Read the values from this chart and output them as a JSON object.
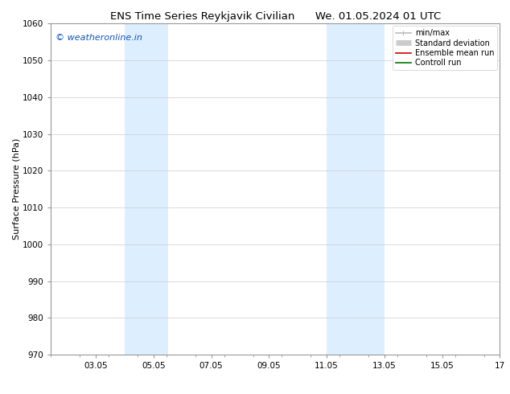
{
  "title_left": "ENS Time Series Reykjavik Civilian",
  "title_right": "We. 01.05.2024 01 UTC",
  "ylabel": "Surface Pressure (hPa)",
  "ylim": [
    970,
    1060
  ],
  "yticks": [
    970,
    980,
    990,
    1000,
    1010,
    1020,
    1030,
    1040,
    1050,
    1060
  ],
  "xlim_start": 1.5,
  "xlim_end": 17.05,
  "xtick_labels": [
    "03.05",
    "05.05",
    "07.05",
    "09.05",
    "11.05",
    "13.05",
    "15.05",
    "17"
  ],
  "xtick_positions": [
    3.05,
    5.05,
    7.05,
    9.05,
    11.05,
    13.05,
    15.05,
    17.05
  ],
  "shaded_bands": [
    {
      "x_start": 4.05,
      "x_end": 5.55
    },
    {
      "x_start": 11.05,
      "x_end": 13.05
    }
  ],
  "shade_color": "#ddeeff",
  "watermark": "© weatheronline.in",
  "watermark_color": "#1155bb",
  "legend_items": [
    {
      "label": "min/max",
      "color": "#bbbbbb",
      "lw": 1.2,
      "type": "line_ticks"
    },
    {
      "label": "Standard deviation",
      "color": "#cccccc",
      "lw": 5,
      "type": "rect"
    },
    {
      "label": "Ensemble mean run",
      "color": "#cc0000",
      "lw": 1.2,
      "type": "line"
    },
    {
      "label": "Controll run",
      "color": "#007700",
      "lw": 1.2,
      "type": "line"
    }
  ],
  "background_color": "#ffffff",
  "grid_color": "#cccccc",
  "title_fontsize": 9.5,
  "axis_label_fontsize": 8,
  "tick_fontsize": 7.5,
  "watermark_fontsize": 8,
  "legend_fontsize": 7
}
